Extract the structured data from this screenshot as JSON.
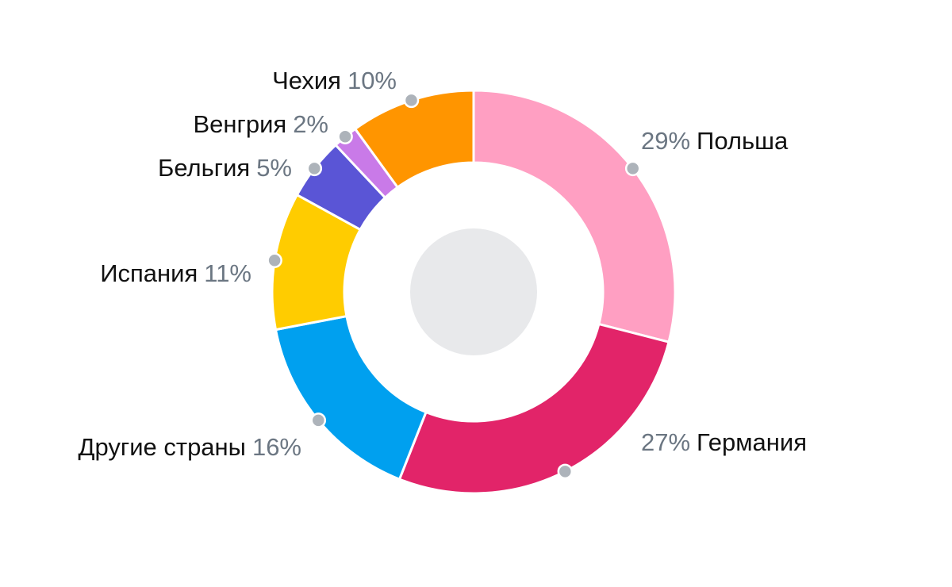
{
  "chart_data": {
    "type": "pie",
    "subtype": "donut",
    "title": "",
    "start_angle_deg": 0,
    "direction": "clockwise",
    "center_placeholder_color": "#e8e9eb",
    "slices": [
      {
        "label": "Польша",
        "value": 29,
        "display": "29%",
        "color": "#ff9fc2"
      },
      {
        "label": "Германия",
        "value": 27,
        "display": "27%",
        "color": "#e22469"
      },
      {
        "label": "Другие страны",
        "value": 16,
        "display": "16%",
        "color": "#00a0ef"
      },
      {
        "label": "Испания",
        "value": 11,
        "display": "11%",
        "color": "#ffcc00"
      },
      {
        "label": "Бельгия",
        "value": 5,
        "display": "5%",
        "color": "#5a55d6"
      },
      {
        "label": "Венгрия",
        "value": 2,
        "display": "2%",
        "color": "#c97ae8"
      },
      {
        "label": "Чехия",
        "value": 10,
        "display": "10%",
        "color": "#ff9500"
      }
    ],
    "marker_color": "#adb3ba"
  },
  "labels": {
    "poland": {
      "name": "Польша",
      "pct": "29%"
    },
    "germany": {
      "name": "Германия",
      "pct": "27%"
    },
    "other": {
      "name": "Другие страны",
      "pct": "16%"
    },
    "spain": {
      "name": "Испания",
      "pct": "11%"
    },
    "belgium": {
      "name": "Бельгия",
      "pct": "5%"
    },
    "hungary": {
      "name": "Венгрия",
      "pct": "2%"
    },
    "czech": {
      "name": "Чехия",
      "pct": "10%"
    }
  }
}
